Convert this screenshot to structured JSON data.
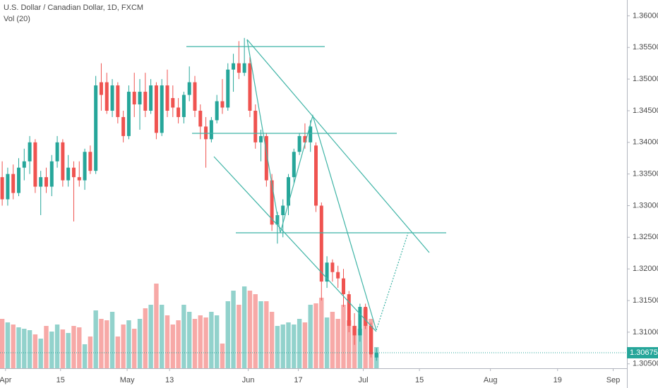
{
  "chart_data": {
    "type": "candlestick",
    "title": "U.S. Dollar / Canadian Dollar, 1D, FXCM",
    "subtitle": "Vol (20)",
    "up_color": "#26a69a",
    "down_color": "#ef5350",
    "grid": false,
    "open": [
      1.3345,
      1.331,
      1.335,
      1.332,
      1.336,
      1.337,
      1.34,
      1.333,
      1.3345,
      1.333,
      1.337,
      1.34,
      1.334,
      1.336,
      1.3345,
      1.334,
      1.3385,
      1.3355,
      1.3495,
      1.3495,
      1.345,
      1.349,
      1.344,
      1.341,
      1.348,
      1.346,
      1.348,
      1.345,
      1.349,
      1.3415,
      1.349,
      1.347,
      1.3455,
      1.344,
      1.3475,
      1.3495,
      1.345,
      1.3425,
      1.3405,
      1.3435,
      1.3465,
      1.3455,
      1.3515,
      1.3525,
      1.351,
      1.3525,
      1.345,
      1.34,
      1.341,
      1.334,
      1.327,
      1.3285,
      1.33,
      1.3345,
      1.3385,
      1.341,
      1.34,
      1.3395,
      1.33,
      1.318,
      1.321,
      1.3195,
      1.3185,
      1.316,
      1.311,
      1.3095,
      1.314,
      1.311,
      1.306
    ],
    "high": [
      1.337,
      1.336,
      1.3365,
      1.3375,
      1.339,
      1.341,
      1.3405,
      1.3355,
      1.336,
      1.338,
      1.341,
      1.3405,
      1.338,
      1.337,
      1.337,
      1.339,
      1.3395,
      1.3505,
      1.3525,
      1.351,
      1.35,
      1.3495,
      1.345,
      1.349,
      1.351,
      1.35,
      1.351,
      1.35,
      1.3495,
      1.35,
      1.3515,
      1.349,
      1.347,
      1.348,
      1.352,
      1.3505,
      1.346,
      1.344,
      1.344,
      1.3475,
      1.35,
      1.3525,
      1.354,
      1.356,
      1.3565,
      1.3535,
      1.346,
      1.342,
      1.3415,
      1.335,
      1.329,
      1.331,
      1.335,
      1.339,
      1.3415,
      1.343,
      1.3435,
      1.34,
      1.3305,
      1.322,
      1.3215,
      1.3205,
      1.32,
      1.3165,
      1.313,
      1.3145,
      1.3145,
      1.3115,
      1.3075
    ],
    "low": [
      1.33,
      1.33,
      1.331,
      1.3315,
      1.334,
      1.335,
      1.332,
      1.3285,
      1.332,
      1.3315,
      1.336,
      1.333,
      1.333,
      1.3275,
      1.333,
      1.3325,
      1.335,
      1.335,
      1.345,
      1.3445,
      1.344,
      1.343,
      1.34,
      1.3405,
      1.344,
      1.342,
      1.344,
      1.3445,
      1.3405,
      1.341,
      1.344,
      1.344,
      1.343,
      1.343,
      1.3465,
      1.344,
      1.3405,
      1.336,
      1.34,
      1.343,
      1.3445,
      1.345,
      1.348,
      1.35,
      1.3505,
      1.344,
      1.339,
      1.337,
      1.333,
      1.326,
      1.324,
      1.325,
      1.3285,
      1.3335,
      1.338,
      1.339,
      1.3385,
      1.329,
      1.315,
      1.317,
      1.318,
      1.317,
      1.314,
      1.31,
      1.308,
      1.3085,
      1.3105,
      1.306,
      1.3055
    ],
    "close": [
      1.331,
      1.335,
      1.332,
      1.336,
      1.337,
      1.34,
      1.333,
      1.3345,
      1.333,
      1.337,
      1.34,
      1.334,
      1.336,
      1.3345,
      1.334,
      1.3385,
      1.3355,
      1.349,
      1.3475,
      1.345,
      1.349,
      1.344,
      1.341,
      1.348,
      1.346,
      1.348,
      1.345,
      1.349,
      1.3415,
      1.349,
      1.345,
      1.3455,
      1.344,
      1.3475,
      1.3495,
      1.345,
      1.3425,
      1.3405,
      1.3435,
      1.3465,
      1.3455,
      1.3515,
      1.3525,
      1.351,
      1.3525,
      1.345,
      1.34,
      1.341,
      1.334,
      1.327,
      1.3285,
      1.33,
      1.3345,
      1.3385,
      1.341,
      1.34,
      1.3425,
      1.33,
      1.318,
      1.321,
      1.3195,
      1.3185,
      1.316,
      1.311,
      1.3095,
      1.314,
      1.311,
      1.3065,
      1.30675
    ],
    "volume": [
      70,
      65,
      62,
      58,
      56,
      54,
      48,
      42,
      60,
      52,
      62,
      55,
      50,
      60,
      58,
      34,
      45,
      82,
      70,
      68,
      80,
      45,
      62,
      68,
      56,
      70,
      85,
      90,
      120,
      90,
      75,
      62,
      68,
      90,
      80,
      70,
      75,
      72,
      80,
      75,
      35,
      95,
      110,
      90,
      116,
      110,
      105,
      95,
      95,
      80,
      60,
      62,
      65,
      62,
      70,
      65,
      90,
      92,
      100,
      72,
      80,
      70,
      90,
      68,
      60,
      56,
      85,
      70,
      30
    ],
    "last_price": 1.30675,
    "xlim": [
      -0.4,
      113.5
    ],
    "xticks": [
      {
        "value": 0.6,
        "label": "Apr"
      },
      {
        "value": 10.6,
        "label": "15"
      },
      {
        "value": 22.7,
        "label": "May"
      },
      {
        "value": 30.4,
        "label": "13"
      },
      {
        "value": 44.7,
        "label": "Jun"
      },
      {
        "value": 53.8,
        "label": "17"
      },
      {
        "value": 65.6,
        "label": "Jul"
      },
      {
        "value": 75.8,
        "label": "15"
      },
      {
        "value": 88.7,
        "label": "Aug"
      },
      {
        "value": 100.9,
        "label": "19"
      },
      {
        "value": 111,
        "label": "Sep"
      }
    ],
    "ylim": [
      1.3043,
      1.3625
    ],
    "yticks": [
      {
        "value": 1.36,
        "label": "1.36000"
      },
      {
        "value": 1.355,
        "label": "1.35500"
      },
      {
        "value": 1.35,
        "label": "1.35000"
      },
      {
        "value": 1.345,
        "label": "1.34500"
      },
      {
        "value": 1.34,
        "label": "1.34000"
      },
      {
        "value": 1.335,
        "label": "1.33500"
      },
      {
        "value": 1.33,
        "label": "1.33000"
      },
      {
        "value": 1.325,
        "label": "1.32500"
      },
      {
        "value": 1.32,
        "label": "1.32000"
      },
      {
        "value": 1.315,
        "label": "1.31500"
      },
      {
        "value": 1.31,
        "label": "1.31000"
      },
      {
        "value": 1.305,
        "label": "1.30500"
      }
    ]
  }
}
